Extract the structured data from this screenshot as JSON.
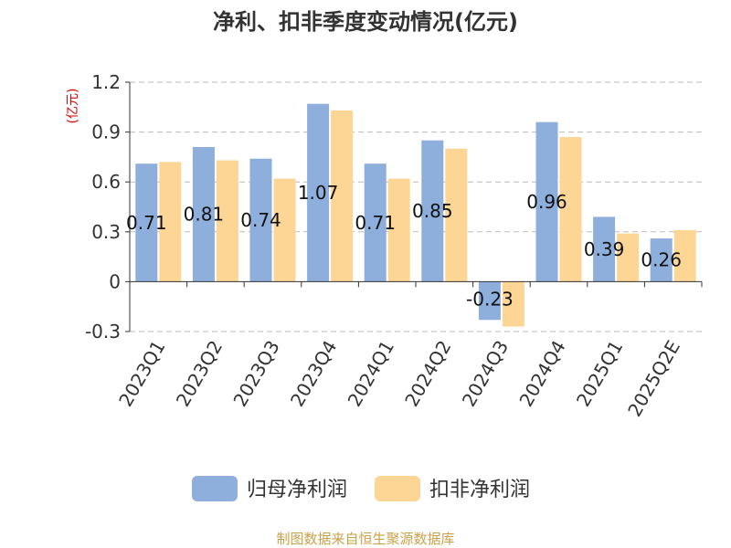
{
  "chart_data": {
    "type": "bar",
    "title": "净利、扣非季度变动情况(亿元)",
    "unit_label": "(亿元)",
    "categories": [
      "2023Q1",
      "2023Q2",
      "2023Q3",
      "2023Q4",
      "2024Q1",
      "2024Q2",
      "2024Q3",
      "2024Q4",
      "2025Q1",
      "2025Q2E"
    ],
    "series": [
      {
        "name": "归母净利润",
        "color": "#8eaedb",
        "values": [
          0.71,
          0.81,
          0.74,
          1.07,
          0.71,
          0.85,
          -0.23,
          0.96,
          0.39,
          0.26
        ],
        "labels": [
          "0.71",
          "0.81",
          "0.74",
          "1.07",
          "0.71",
          "0.85",
          "-0.23",
          "0.96",
          "0.39",
          "0.26"
        ]
      },
      {
        "name": "扣非净利润",
        "color": "#fdd696",
        "values": [
          0.72,
          0.73,
          0.62,
          1.03,
          0.62,
          0.8,
          -0.27,
          0.87,
          0.29,
          0.31
        ]
      }
    ],
    "yticks": [
      1.2,
      0.9,
      0.6,
      0.3,
      0,
      -0.3
    ],
    "ylim": [
      -0.3,
      1.2
    ],
    "grid": true,
    "legend": "bottom"
  },
  "source": "制图数据来自恒生聚源数据库"
}
